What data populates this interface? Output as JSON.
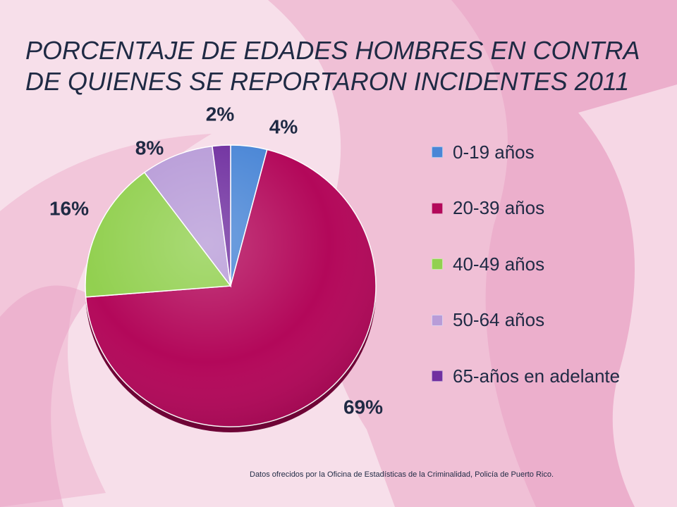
{
  "slide": {
    "title_lines": [
      "PORCENTAJE DE EDADES HOMBRES EN CONTRA",
      "DE QUIENES SE REPORTARON INCIDENTES 2011"
    ],
    "source_note": "Datos ofrecidos por la Oficina de Estadísticas de la Criminalidad, Policía de Puerto Rico."
  },
  "chart_data": {
    "type": "pie",
    "title": "PORCENTAJE DE EDADES HOMBRES EN CONTRA DE QUIENES SE REPORTARON INCIDENTES 2011",
    "categories": [
      "0-19 años",
      "20-39 años",
      "40-49 años",
      "50-64 años",
      "65-años en adelante"
    ],
    "values": [
      4,
      69,
      16,
      8,
      2
    ],
    "data_labels": [
      "4%",
      "69%",
      "16%",
      "8%",
      "2%"
    ],
    "colors": [
      "#4a86d6",
      "#b3085a",
      "#92d050",
      "#b89cd8",
      "#7030a0"
    ],
    "legend_position": "right",
    "start_angle": "12 o'clock, clockwise"
  }
}
